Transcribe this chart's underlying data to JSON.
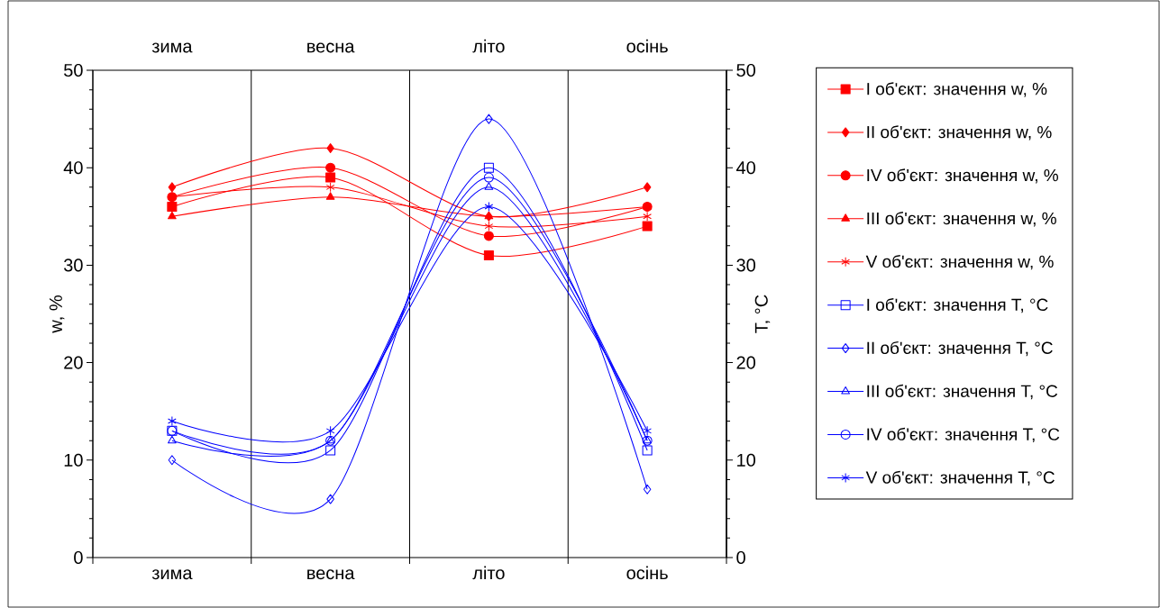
{
  "chart_data": {
    "type": "line",
    "ylabel": "w, %",
    "y2label": "T, °C",
    "categories": [
      "зима",
      "весна",
      "літо",
      "осінь"
    ],
    "ylim": [
      0,
      50
    ],
    "yticks": [
      0,
      10,
      20,
      30,
      40,
      50
    ],
    "y2lim": [
      0,
      50
    ],
    "y2ticks": [
      0,
      10,
      20,
      30,
      40,
      50
    ],
    "grid": "x",
    "legend": "right",
    "line_style": "solid",
    "series": [
      {
        "name": "I об'єкт: значення w, %",
        "color": "#ff0000",
        "marker": "square",
        "values": [
          36,
          39,
          31,
          34
        ]
      },
      {
        "name": "II об'єкт: значення w, %",
        "color": "#ff0000",
        "marker": "diamond",
        "values": [
          38,
          42,
          35,
          38
        ]
      },
      {
        "name": "IV об'єкт: значення w, %",
        "color": "#ff0000",
        "marker": "circle",
        "values": [
          37,
          40,
          33,
          36
        ]
      },
      {
        "name": "III об'єкт: значення w, %",
        "color": "#ff0000",
        "marker": "triangle",
        "values": [
          35,
          37,
          35,
          36
        ]
      },
      {
        "name": "V об'єкт: значення w, %",
        "color": "#ff0000",
        "marker": "cross",
        "values": [
          37,
          38,
          34,
          35
        ]
      },
      {
        "name": "I об'єкт: значення T, °C",
        "color": "#0000ff",
        "marker": "square",
        "axis": "y2",
        "values": [
          13,
          11,
          40,
          11
        ]
      },
      {
        "name": "II об'єкт: значення T, °C",
        "color": "#0000ff",
        "marker": "diamond",
        "axis": "y2",
        "values": [
          10,
          6,
          45,
          7
        ]
      },
      {
        "name": "III об'єкт: значення T, °C",
        "color": "#0000ff",
        "marker": "triangle",
        "axis": "y2",
        "values": [
          12,
          12,
          38,
          12
        ]
      },
      {
        "name": "IV об'єкт: значення T, °C",
        "color": "#0000ff",
        "marker": "circle",
        "axis": "y2",
        "values": [
          13,
          12,
          39,
          12
        ]
      },
      {
        "name": "V об'єкт: значення T, °C",
        "color": "#0000ff",
        "marker": "cross",
        "axis": "y2",
        "values": [
          14,
          13,
          36,
          13
        ]
      }
    ]
  }
}
